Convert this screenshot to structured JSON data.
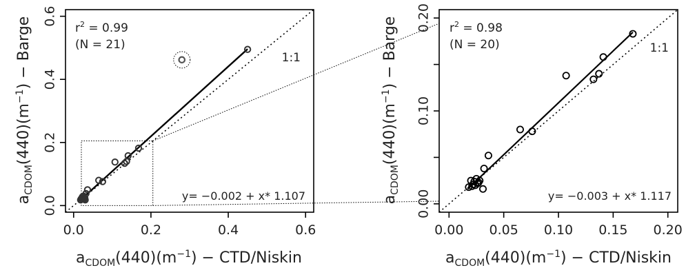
{
  "chart_data": [
    {
      "type": "scatter",
      "xlabel": {
        "base": "a",
        "sub": "CDOM",
        "rest": "(440)(m",
        "sup": "−1",
        "tail": ") − CTD/Niskin"
      },
      "ylabel": {
        "base": "a",
        "sub": "CDOM",
        "rest": "(440)(m",
        "sup": "−1",
        "tail": ") − Barge"
      },
      "xlim": [
        0,
        0.6
      ],
      "ylim": [
        0,
        0.6
      ],
      "xticks": [
        "0.0",
        "0.2",
        "0.4",
        "0.6"
      ],
      "yticks": [
        "0.0",
        "0.2",
        "0.4",
        "0.6"
      ],
      "r2_label": "r",
      "r2_sup": "2",
      "r2_value": " = 0.99",
      "n_label": "(N = 21)",
      "one_to_one": "1:1",
      "equation": "y= −0.002 + x* 1.107",
      "fit": {
        "intercept": -0.002,
        "slope": 1.107,
        "x_range": [
          0.018,
          0.45
        ]
      },
      "outlier": {
        "x": 0.28,
        "y": 0.462
      },
      "inset_box": {
        "x": [
          0.0,
          0.205
        ],
        "y": [
          0.0,
          0.205
        ]
      },
      "points": [
        [
          0.018,
          0.018
        ],
        [
          0.02,
          0.022
        ],
        [
          0.022,
          0.02
        ],
        [
          0.023,
          0.028
        ],
        [
          0.025,
          0.024
        ],
        [
          0.026,
          0.03
        ],
        [
          0.027,
          0.02
        ],
        [
          0.029,
          0.024
        ],
        [
          0.03,
          0.018
        ],
        [
          0.032,
          0.038
        ],
        [
          0.036,
          0.05
        ],
        [
          0.065,
          0.08
        ],
        [
          0.075,
          0.076
        ],
        [
          0.107,
          0.138
        ],
        [
          0.132,
          0.134
        ],
        [
          0.137,
          0.14
        ],
        [
          0.141,
          0.158
        ],
        [
          0.168,
          0.182
        ],
        [
          0.45,
          0.495
        ],
        [
          0.028,
          0.026
        ],
        [
          0.024,
          0.022
        ]
      ]
    },
    {
      "type": "scatter",
      "xlabel": {
        "base": "a",
        "sub": "CDOM",
        "rest": "(440)(m",
        "sup": "−1",
        "tail": ") − CTD/Niskin"
      },
      "ylabel": {
        "base": "a",
        "sub": "CDOM",
        "rest": "(440)(m",
        "sup": "−1",
        "tail": ") − Barge"
      },
      "xlim": [
        0,
        0.2
      ],
      "ylim": [
        0,
        0.2
      ],
      "xticks": [
        "0.00",
        "0.05",
        "0.10",
        "0.15",
        "0.20"
      ],
      "yticks": [
        "0.00",
        "0.10",
        "0.20"
      ],
      "r2_label": "r",
      "r2_sup": "2",
      "r2_value": " = 0.98",
      "n_label": "(N = 20)",
      "one_to_one": "1:1",
      "equation": "y= −0.003 + x* 1.117",
      "fit": {
        "intercept": -0.003,
        "slope": 1.117,
        "x_range": [
          0.017,
          0.168
        ]
      },
      "points": [
        [
          0.018,
          0.018
        ],
        [
          0.02,
          0.025
        ],
        [
          0.021,
          0.019
        ],
        [
          0.022,
          0.021
        ],
        [
          0.023,
          0.024
        ],
        [
          0.024,
          0.02
        ],
        [
          0.025,
          0.027
        ],
        [
          0.026,
          0.022
        ],
        [
          0.027,
          0.023
        ],
        [
          0.028,
          0.025
        ],
        [
          0.031,
          0.016
        ],
        [
          0.032,
          0.038
        ],
        [
          0.036,
          0.052
        ],
        [
          0.065,
          0.08
        ],
        [
          0.076,
          0.078
        ],
        [
          0.107,
          0.138
        ],
        [
          0.132,
          0.134
        ],
        [
          0.137,
          0.14
        ],
        [
          0.141,
          0.158
        ],
        [
          0.168,
          0.183
        ]
      ]
    }
  ]
}
